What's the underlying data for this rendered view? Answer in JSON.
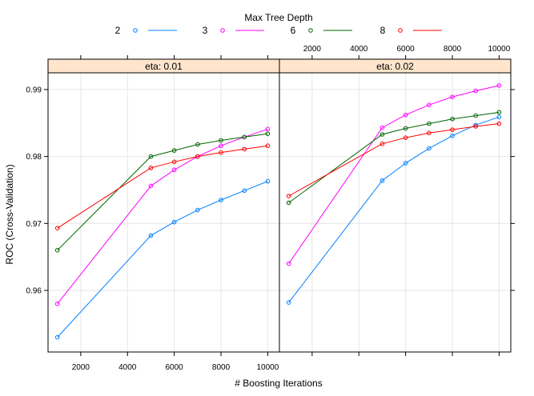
{
  "chart_data": {
    "type": "line",
    "legend": {
      "title": "Max Tree Depth",
      "placement": "top"
    },
    "xlabel": "# Boosting Iterations",
    "ylabel": "ROC (Cross-Validation)",
    "x": [
      1000,
      5000,
      6000,
      7000,
      8000,
      9000,
      10000
    ],
    "xlim": [
      600,
      10500
    ],
    "ylim": [
      0.9508,
      0.9925
    ],
    "x_ticks": [
      2000,
      4000,
      6000,
      8000,
      10000
    ],
    "y_ticks": [
      0.96,
      0.97,
      0.98,
      0.99
    ],
    "grid": true,
    "series_colors": {
      "2": "#0080ff",
      "3": "#ff00ff",
      "6": "#006400",
      "8": "#ff0000"
    },
    "panels": [
      {
        "strip": "eta: 0.01",
        "series": [
          {
            "name": "2",
            "values": [
              0.953,
              0.9682,
              0.9702,
              0.972,
              0.9735,
              0.9749,
              0.9763
            ]
          },
          {
            "name": "3",
            "values": [
              0.958,
              0.9756,
              0.978,
              0.98,
              0.9816,
              0.9829,
              0.9841
            ]
          },
          {
            "name": "6",
            "values": [
              0.966,
              0.98,
              0.9809,
              0.9818,
              0.9824,
              0.9829,
              0.9834
            ]
          },
          {
            "name": "8",
            "values": [
              0.9693,
              0.9783,
              0.9792,
              0.98,
              0.9806,
              0.9811,
              0.9816
            ]
          }
        ]
      },
      {
        "strip": "eta: 0.02",
        "series": [
          {
            "name": "2",
            "values": [
              0.9582,
              0.9764,
              0.979,
              0.9812,
              0.9831,
              0.9847,
              0.9859
            ]
          },
          {
            "name": "3",
            "values": [
              0.964,
              0.9843,
              0.9862,
              0.9877,
              0.9889,
              0.9898,
              0.9906
            ]
          },
          {
            "name": "6",
            "values": [
              0.9731,
              0.9833,
              0.9842,
              0.9849,
              0.9856,
              0.9861,
              0.9866
            ]
          },
          {
            "name": "8",
            "values": [
              0.9741,
              0.9819,
              0.9828,
              0.9835,
              0.984,
              0.9845,
              0.9849
            ]
          }
        ]
      }
    ]
  }
}
